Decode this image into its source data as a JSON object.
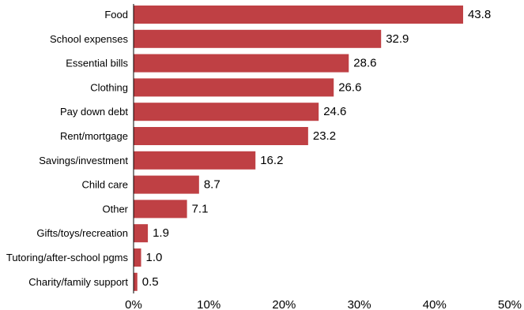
{
  "chart_data": {
    "type": "bar",
    "orientation": "horizontal",
    "categories": [
      "Food",
      "School expenses",
      "Essential bills",
      "Clothing",
      "Pay down debt",
      "Rent/mortgage",
      "Savings/investment",
      "Child care",
      "Other",
      "Gifts/toys/recreation",
      "Tutoring/after-school pgms",
      "Charity/family support"
    ],
    "values": [
      43.8,
      32.9,
      28.6,
      26.6,
      24.6,
      23.2,
      16.2,
      8.7,
      7.1,
      1.9,
      1.0,
      0.5
    ],
    "value_labels": [
      "43.8",
      "32.9",
      "28.6",
      "26.6",
      "24.6",
      "23.2",
      "16.2",
      "8.7",
      "7.1",
      "1.9",
      "1.0",
      "0.5"
    ],
    "xlim": [
      0,
      50
    ],
    "xticks": [
      0,
      10,
      20,
      30,
      40,
      50
    ],
    "xtick_labels": [
      "0%",
      "10%",
      "20%",
      "30%",
      "40%",
      "50%"
    ],
    "title": "",
    "xlabel": "",
    "ylabel": "",
    "grid": false,
    "bar_color": "#bf4044"
  }
}
